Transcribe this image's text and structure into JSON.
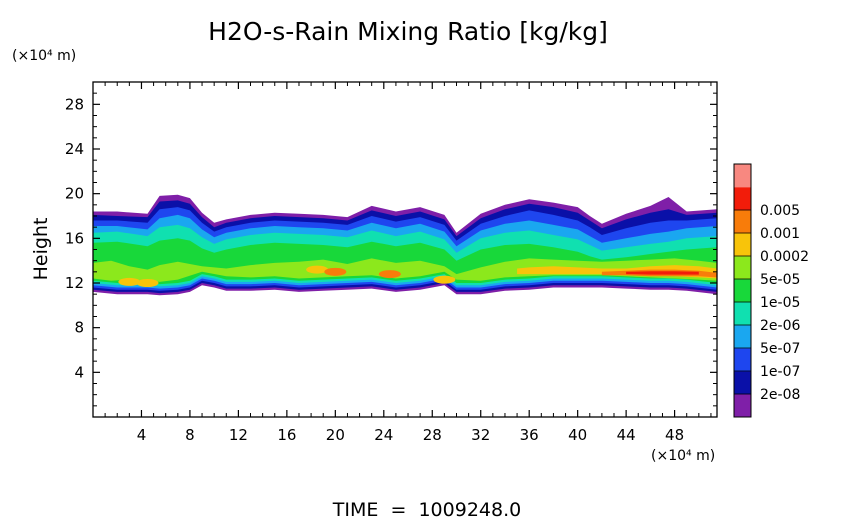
{
  "chart_data": {
    "type": "heatmap",
    "title": "H2O-s-Rain Mixing Ratio [kg/kg]",
    "ylabel": "Height",
    "y_unit": "(×10⁴ m)",
    "x_unit": "(×10⁴ m)",
    "footer": "TIME  =  1009248.0",
    "xlim": [
      0,
      51.5
    ],
    "ylim": [
      0,
      30
    ],
    "xticks": [
      4,
      8,
      12,
      16,
      20,
      24,
      28,
      32,
      36,
      40,
      44,
      48
    ],
    "yticks": [
      4,
      8,
      12,
      16,
      20,
      24,
      28
    ],
    "colorbar": {
      "levels": [
        "2e-08",
        "1e-07",
        "5e-07",
        "2e-06",
        "1e-05",
        "5e-05",
        "0.0002",
        "0.001",
        "0.005"
      ],
      "colors": [
        "#7f1fa8",
        "#0a10a8",
        "#1e46ef",
        "#1aa7f0",
        "#10e0b0",
        "#18d83a",
        "#8ce81c",
        "#f8c40a",
        "#f87c0a",
        "#f21c0a",
        "#f88880"
      ]
    },
    "field_layers": [
      {
        "level": 0,
        "color": "#7f1fa8",
        "x": [
          0,
          2,
          4.5,
          5.5,
          7,
          8,
          9,
          10,
          11,
          13,
          15,
          17,
          19,
          21,
          23,
          25,
          27,
          29,
          30,
          32,
          34,
          36,
          38,
          40,
          41,
          42,
          44,
          46,
          47.5,
          49,
          51.5
        ],
        "top": [
          18.4,
          18.4,
          18.2,
          19.8,
          19.9,
          19.6,
          18.3,
          17.4,
          17.7,
          18.1,
          18.3,
          18.2,
          18.1,
          17.9,
          18.9,
          18.4,
          18.8,
          18.1,
          16.5,
          18.2,
          19.0,
          19.5,
          19.2,
          18.8,
          18.0,
          17.3,
          18.2,
          18.9,
          19.7,
          18.4,
          18.6
        ],
        "bottom": [
          11.2,
          11.0,
          11.0,
          10.9,
          11.0,
          11.2,
          11.8,
          11.6,
          11.3,
          11.3,
          11.4,
          11.2,
          11.3,
          11.4,
          11.5,
          11.2,
          11.4,
          11.8,
          11.0,
          11.0,
          11.3,
          11.4,
          11.6,
          11.6,
          11.6,
          11.6,
          11.5,
          11.4,
          11.4,
          11.3,
          11.0
        ]
      },
      {
        "level": 1,
        "color": "#0a10a8",
        "x": [
          0,
          2,
          4.5,
          5.5,
          7,
          8,
          9,
          10,
          11,
          13,
          15,
          17,
          19,
          21,
          23,
          25,
          27,
          29,
          30,
          32,
          34,
          36,
          38,
          40,
          41,
          42,
          44,
          46,
          47.5,
          49,
          51.5
        ],
        "top": [
          18.1,
          18.0,
          17.9,
          19.3,
          19.4,
          19.1,
          17.9,
          17.0,
          17.4,
          17.8,
          18.0,
          17.9,
          17.8,
          17.6,
          18.5,
          18.0,
          18.4,
          17.7,
          16.2,
          17.8,
          18.6,
          19.1,
          18.8,
          18.3,
          17.6,
          16.9,
          17.7,
          18.3,
          18.6,
          18.1,
          18.3
        ],
        "bottom": [
          11.4,
          11.2,
          11.2,
          11.1,
          11.2,
          11.4,
          12.0,
          11.8,
          11.5,
          11.5,
          11.6,
          11.4,
          11.5,
          11.6,
          11.7,
          11.4,
          11.6,
          12.0,
          11.2,
          11.2,
          11.5,
          11.6,
          11.8,
          11.8,
          11.8,
          11.8,
          11.7,
          11.6,
          11.6,
          11.5,
          11.2
        ]
      },
      {
        "level": 2,
        "color": "#1e46ef",
        "x": [
          0,
          2,
          4.5,
          5.5,
          7,
          8,
          9,
          10,
          11,
          13,
          15,
          17,
          19,
          21,
          23,
          25,
          27,
          29,
          30,
          32,
          34,
          36,
          38,
          40,
          41,
          42,
          44,
          46,
          47.5,
          49,
          51.5
        ],
        "top": [
          17.6,
          17.6,
          17.4,
          18.6,
          18.8,
          18.5,
          17.4,
          16.6,
          17.0,
          17.4,
          17.6,
          17.5,
          17.4,
          17.2,
          18.0,
          17.5,
          17.9,
          17.2,
          15.8,
          17.3,
          18.0,
          18.5,
          18.1,
          17.6,
          17.0,
          16.3,
          16.9,
          17.4,
          17.6,
          17.6,
          17.8
        ],
        "bottom": [
          11.6,
          11.4,
          11.4,
          11.3,
          11.4,
          11.6,
          12.2,
          12.0,
          11.7,
          11.7,
          11.8,
          11.6,
          11.7,
          11.8,
          11.9,
          11.6,
          11.8,
          12.2,
          11.4,
          11.4,
          11.7,
          11.8,
          12.0,
          12.0,
          12.0,
          12.0,
          11.9,
          11.8,
          11.8,
          11.7,
          11.4
        ]
      },
      {
        "level": 3,
        "color": "#1aa7f0",
        "x": [
          0,
          2,
          4.5,
          5.5,
          7,
          8,
          9,
          10,
          11,
          13,
          15,
          17,
          19,
          21,
          23,
          25,
          27,
          29,
          30,
          32,
          34,
          36,
          38,
          40,
          41,
          42,
          44,
          46,
          47.5,
          49,
          51.5
        ],
        "top": [
          17.1,
          17.1,
          16.8,
          17.8,
          18.1,
          17.8,
          16.8,
          16.1,
          16.5,
          16.9,
          17.1,
          17.0,
          16.9,
          16.7,
          17.4,
          16.9,
          17.3,
          16.6,
          15.3,
          16.7,
          17.3,
          17.6,
          17.2,
          16.8,
          16.2,
          15.6,
          16.0,
          16.4,
          16.6,
          16.9,
          17.1
        ],
        "bottom": [
          11.8,
          11.6,
          11.6,
          11.5,
          11.6,
          11.8,
          12.4,
          12.2,
          11.9,
          11.9,
          12.0,
          11.8,
          11.9,
          12.0,
          12.1,
          11.8,
          12.0,
          12.4,
          11.6,
          11.6,
          11.9,
          12.0,
          12.2,
          12.2,
          12.2,
          12.2,
          12.1,
          12.0,
          12.0,
          11.9,
          11.6
        ]
      },
      {
        "level": 4,
        "color": "#10e0b0",
        "x": [
          0,
          2,
          4.5,
          5.5,
          7,
          8,
          9,
          10,
          11,
          13,
          15,
          17,
          19,
          21,
          23,
          25,
          27,
          29,
          30,
          32,
          34,
          36,
          38,
          40,
          41,
          42,
          44,
          46,
          47.5,
          49,
          51.5
        ],
        "top": [
          16.5,
          16.6,
          16.2,
          17.0,
          17.2,
          16.9,
          16.1,
          15.5,
          15.9,
          16.3,
          16.5,
          16.4,
          16.3,
          16.1,
          16.7,
          16.2,
          16.6,
          15.9,
          14.7,
          16.0,
          16.5,
          16.7,
          16.3,
          15.9,
          15.4,
          14.9,
          15.2,
          15.5,
          15.7,
          16.0,
          16.2
        ],
        "bottom": [
          12.0,
          11.8,
          11.8,
          11.7,
          11.8,
          12.0,
          12.6,
          12.4,
          12.1,
          12.1,
          12.2,
          12.0,
          12.1,
          12.2,
          12.3,
          12.0,
          12.2,
          12.6,
          11.8,
          11.8,
          12.1,
          12.2,
          12.4,
          12.4,
          12.4,
          12.4,
          12.3,
          12.2,
          12.2,
          12.1,
          11.8
        ]
      },
      {
        "level": 5,
        "color": "#18d83a",
        "x": [
          0,
          2,
          4.5,
          5.5,
          7,
          8,
          9,
          10,
          11,
          13,
          15,
          17,
          19,
          21,
          23,
          25,
          27,
          29,
          30,
          32,
          34,
          36,
          38,
          40,
          41,
          42,
          44,
          46,
          47.5,
          49,
          51.5
        ],
        "top": [
          15.6,
          15.7,
          15.3,
          15.8,
          16.0,
          15.8,
          15.1,
          14.7,
          15.0,
          15.4,
          15.6,
          15.5,
          15.4,
          15.2,
          15.7,
          15.3,
          15.6,
          15.0,
          14.0,
          15.0,
          15.4,
          15.5,
          15.2,
          14.8,
          14.4,
          14.1,
          14.3,
          14.6,
          14.8,
          15.0,
          15.2
        ],
        "bottom": [
          12.2,
          12.0,
          12.0,
          11.9,
          12.0,
          12.2,
          12.8,
          12.6,
          12.3,
          12.3,
          12.4,
          12.2,
          12.3,
          12.4,
          12.5,
          12.2,
          12.4,
          12.8,
          12.0,
          12.0,
          12.3,
          12.4,
          12.6,
          12.6,
          12.6,
          12.6,
          12.5,
          12.4,
          12.4,
          12.3,
          12.0
        ]
      },
      {
        "level": 6,
        "color": "#8ce81c",
        "x": [
          0,
          1.5,
          3,
          4.5,
          5.5,
          7,
          9,
          11,
          13,
          15,
          17,
          19,
          21,
          23,
          25,
          27,
          29,
          30,
          32,
          34,
          36,
          38,
          40,
          42,
          44,
          46,
          48,
          50,
          51.5
        ],
        "top": [
          13.8,
          14.0,
          13.5,
          13.2,
          13.6,
          13.9,
          13.5,
          13.3,
          13.6,
          13.8,
          13.9,
          14.1,
          13.7,
          14.2,
          13.8,
          14.0,
          13.5,
          12.8,
          13.4,
          13.9,
          14.2,
          14.1,
          14.0,
          13.9,
          14.0,
          14.1,
          14.2,
          14.0,
          13.8
        ],
        "bottom": [
          12.4,
          12.2,
          12.3,
          12.2,
          12.1,
          12.3,
          13.0,
          12.6,
          12.5,
          12.6,
          12.4,
          12.5,
          12.6,
          12.7,
          12.4,
          12.6,
          13.0,
          12.3,
          12.2,
          12.5,
          12.6,
          12.7,
          12.7,
          12.7,
          12.6,
          12.5,
          12.4,
          12.3,
          12.2
        ]
      },
      {
        "level": 7,
        "color": "#f8c40a",
        "x": [
          35,
          36,
          38,
          40,
          42,
          44,
          46,
          48,
          50,
          51.5
        ],
        "top": [
          13.3,
          13.4,
          13.5,
          13.4,
          13.3,
          13.3,
          13.5,
          13.6,
          13.5,
          13.3
        ],
        "bottom": [
          12.8,
          12.8,
          12.8,
          12.8,
          12.8,
          12.7,
          12.7,
          12.6,
          12.5,
          12.4
        ]
      },
      {
        "level": 8,
        "color": "#f87c0a",
        "x": [
          42,
          44,
          46,
          48,
          50,
          51.5
        ],
        "top": [
          13.0,
          13.1,
          13.2,
          13.2,
          13.1,
          12.9
        ],
        "bottom": [
          12.7,
          12.7,
          12.6,
          12.6,
          12.6,
          12.5
        ]
      },
      {
        "level": 9,
        "color": "#f21c0a",
        "x": [
          44,
          46,
          48,
          50
        ],
        "top": [
          13.0,
          13.05,
          13.05,
          13.0
        ],
        "bottom": [
          12.8,
          12.75,
          12.75,
          12.75
        ]
      }
    ],
    "local_maxima": [
      {
        "x": 3.0,
        "y": 12.1,
        "level": 7
      },
      {
        "x": 4.5,
        "y": 12.0,
        "level": 7
      },
      {
        "x": 18.5,
        "y": 13.2,
        "level": 7
      },
      {
        "x": 20.0,
        "y": 13.0,
        "level": 8
      },
      {
        "x": 24.5,
        "y": 12.8,
        "level": 8
      },
      {
        "x": 29.0,
        "y": 12.3,
        "level": 7
      }
    ]
  }
}
